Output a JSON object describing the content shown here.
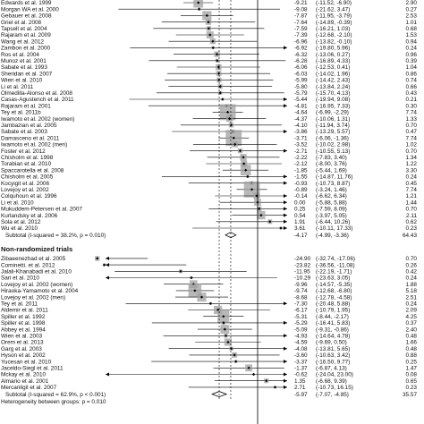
{
  "chart_data": {
    "type": "forest",
    "x_scale": "linear",
    "null_line": 0,
    "colors": {
      "box": "#a0a0a0",
      "line": "#000000",
      "diamond": "#ffffff"
    },
    "groups": [
      {
        "name": "",
        "studies": [
          {
            "label": "Edwards et al. 1999",
            "es": "-9.21",
            "ci": "(-11.52, -6.90)",
            "wt": "2.90",
            "est": -9.21,
            "lo": -11.52,
            "hi": -6.9,
            "w": 2.9
          },
          {
            "label": "Morgan WA et al. 2000",
            "es": "-9.08",
            "ci": "(-21.62, 3.47)",
            "wt": "0.27",
            "est": -9.08,
            "lo": -21.62,
            "hi": 3.47,
            "w": 0.27
          },
          {
            "label": "Gebauer et al. 2008",
            "es": "-7.87",
            "ci": "(-11.95, -3.79)",
            "wt": "2.53",
            "est": -7.87,
            "lo": -11.95,
            "hi": -3.79,
            "w": 2.53
          },
          {
            "label": "Griel et al. 2008",
            "es": "-7.64",
            "ci": "(-14.89, -0.39)",
            "wt": "1.01",
            "est": -7.64,
            "lo": -14.89,
            "hi": -0.39,
            "w": 1.01
          },
          {
            "label": "Tapsell et al. 2004",
            "es": "-7.59",
            "ci": "(-16.21, 1.03)",
            "wt": "0.68",
            "est": -7.59,
            "lo": -16.21,
            "hi": 1.03,
            "w": 0.68
          },
          {
            "label": "Rajaram et al. 2009",
            "es": "-7.39",
            "ci": "(-12.68, -2.10)",
            "wt": "1.53",
            "est": -7.39,
            "lo": -12.68,
            "hi": -2.1,
            "w": 1.53
          },
          {
            "label": "Wang et al. 2012",
            "es": "-6.96",
            "ci": "(-13.82, -0.10)",
            "wt": "0.94",
            "est": -6.96,
            "lo": -13.82,
            "hi": -0.1,
            "w": 0.94
          },
          {
            "label": "Zambon et al. 2000",
            "es": "-6.92",
            "ci": "(-19.80, 5.96)",
            "wt": "0.24",
            "est": -6.92,
            "lo": -19.8,
            "hi": 5.96,
            "w": 0.24
          },
          {
            "label": "Ros et al. 2004",
            "es": "-6.32",
            "ci": "(-13.06, 0.27)",
            "wt": "0.96",
            "est": -6.32,
            "lo": -13.06,
            "hi": 0.27,
            "w": 0.96
          },
          {
            "label": "Munoz et al. 2001",
            "es": "-6.28",
            "ci": "(-16.89, 4.33)",
            "wt": "0.39",
            "est": -6.28,
            "lo": -16.89,
            "hi": 4.33,
            "w": 0.39
          },
          {
            "label": "Sabate et al. 1993",
            "es": "-6.06",
            "ci": "(-12.53, 0.41)",
            "wt": "1.04",
            "est": -6.06,
            "lo": -12.53,
            "hi": 0.41,
            "w": 1.04
          },
          {
            "label": "Sheridan et al. 2007",
            "es": "-6.03",
            "ci": "(-14.02, 1.96)",
            "wt": "0.86",
            "est": -6.03,
            "lo": -14.02,
            "hi": 1.96,
            "w": 0.86
          },
          {
            "label": "Wien et al. 2010",
            "es": "-5.99",
            "ci": "(-14.42, 2.43)",
            "wt": "0.74",
            "est": -5.99,
            "lo": -14.42,
            "hi": 2.43,
            "w": 0.74
          },
          {
            "label": "Li et al. 2011",
            "es": "-5.80",
            "ci": "(-13.84, 2.24)",
            "wt": "0.66",
            "est": -5.8,
            "lo": -13.84,
            "hi": 2.24,
            "w": 0.66
          },
          {
            "label": "Olmedilla-Alonso et al. 2008",
            "es": "-5.79",
            "ci": "(-15.70, 4.13)",
            "wt": "0.43",
            "est": -5.79,
            "lo": -15.7,
            "hi": 4.13,
            "w": 0.43
          },
          {
            "label": "Casas-Agustench et al. 2011",
            "es": "-5.44",
            "ci": "(-19.94, 9.08)",
            "wt": "0.21",
            "est": -5.44,
            "lo": -19.94,
            "hi": 9.08,
            "w": 0.21
          },
          {
            "label": "Rajaram et al. 2001",
            "es": "-4.81",
            "ci": "(-16.95, 7.33)",
            "wt": "0.30",
            "est": -4.81,
            "lo": -16.95,
            "hi": 7.33,
            "w": 0.3
          },
          {
            "label": "Tey et al. 2011b",
            "es": "-4.64",
            "ci": "(-6.99, -2.29)",
            "wt": "7.74",
            "est": -4.64,
            "lo": -6.99,
            "hi": -2.29,
            "w": 7.74
          },
          {
            "label": "Iwamoto et al. 2002 (women)",
            "es": "-4.37",
            "ci": "(-10.06, 1.31)",
            "wt": "1.33",
            "est": -4.37,
            "lo": -10.06,
            "hi": 1.31,
            "w": 1.33
          },
          {
            "label": "Jambazian et al. 2005",
            "es": "-4.10",
            "ci": "(-11.94, 3.74)",
            "wt": "0.70",
            "est": -4.1,
            "lo": -11.94,
            "hi": 3.74,
            "w": 0.7
          },
          {
            "label": "Sabate et al. 2003",
            "es": "-3.86",
            "ci": "(-13.29, 5.57)",
            "wt": "0.47",
            "est": -3.86,
            "lo": -13.29,
            "hi": 5.57,
            "w": 0.47
          },
          {
            "label": "Damasceno et al. 2011",
            "es": "-3.71",
            "ci": "(-6.06, -1.36)",
            "wt": "7.74",
            "est": -3.71,
            "lo": -6.06,
            "hi": -1.36,
            "w": 7.74
          },
          {
            "label": "Iwamoto et al. 2002 (men)",
            "es": "-3.52",
            "ci": "(-10.02, 2.98)",
            "wt": "1.02",
            "est": -3.52,
            "lo": -10.02,
            "hi": 2.98,
            "w": 1.02
          },
          {
            "label": "Foster et al. 2012",
            "es": "-2.71",
            "ci": "(-10.55, 5.13)",
            "wt": "0.70",
            "est": -2.71,
            "lo": -10.55,
            "hi": 5.13,
            "w": 0.7
          },
          {
            "label": "Chisholm et al. 1998",
            "es": "-2.22",
            "ci": "(-7.83, 3.40)",
            "wt": "1.34",
            "est": -2.22,
            "lo": -7.83,
            "hi": 3.4,
            "w": 1.34
          },
          {
            "label": "Torabian et al. 2010",
            "es": "-2.12",
            "ci": "(-8.00, 3.76)",
            "wt": "1.22",
            "est": -2.12,
            "lo": -8.0,
            "hi": 3.76,
            "w": 1.22
          },
          {
            "label": "Spaccarotella et al. 2008",
            "es": "-1.85",
            "ci": "(-5.44, 1.69)",
            "wt": "3.30",
            "est": -1.85,
            "lo": -5.44,
            "hi": 1.69,
            "w": 3.3
          },
          {
            "label": "Chisholm et al. 2005",
            "es": "-1.55",
            "ci": "(-14.87, 11.76)",
            "wt": "0.24",
            "est": -1.55,
            "lo": -14.87,
            "hi": 11.76,
            "w": 0.24
          },
          {
            "label": "Kocyigit et al. 2006",
            "es": "-0.93",
            "ci": "(-10.73, 8.87)",
            "wt": "0.45",
            "est": -0.93,
            "lo": -10.73,
            "hi": 8.87,
            "w": 0.45
          },
          {
            "label": "Lovejoy et al. 2002",
            "es": "-0.89",
            "ci": "(-3.24, 1.46)",
            "wt": "7.74",
            "est": -0.89,
            "lo": -3.24,
            "hi": 1.46,
            "w": 7.74
          },
          {
            "label": "Colquhoun et al. 1996",
            "es": "-0.14",
            "ci": "(-6.62, 6.34)",
            "wt": "1.21",
            "est": -0.14,
            "lo": -6.62,
            "hi": 6.34,
            "w": 1.21
          },
          {
            "label": "Li et al. 2010",
            "es": "0.00",
            "ci": "(-5.88, 5.88)",
            "wt": "1.44",
            "est": 0.0,
            "lo": -5.88,
            "hi": 5.88,
            "w": 1.44
          },
          {
            "label": "Mukuddem-Petersen et al. 2007",
            "es": "0.25",
            "ci": "(-7.59, 8.09)",
            "wt": "0.70",
            "est": 0.25,
            "lo": -7.59,
            "hi": 8.09,
            "w": 0.7
          },
          {
            "label": "Kurlandsky et al. 2006",
            "es": "0.54",
            "ci": "(-3.97, 5.05)",
            "wt": "2.11",
            "est": 0.54,
            "lo": -3.97,
            "hi": 5.05,
            "w": 2.11
          },
          {
            "label": "Sola et al. 2012",
            "es": "1.91",
            "ci": "(-6.44, 10.26)",
            "wt": "0.62",
            "est": 1.91,
            "lo": -6.44,
            "hi": 10.26,
            "w": 0.62
          },
          {
            "label": "Wu et al. 2010",
            "es": "3.61",
            "ci": "(-10.11, 17.33)",
            "wt": "0.23",
            "est": 3.61,
            "lo": -10.11,
            "hi": 17.33,
            "w": 0.23
          }
        ],
        "subtotal": {
          "label": "Subtotal  (I-squared = 38.2%, p = 0.010)",
          "es": "-4.17",
          "ci": "(-4.99, -3.36)",
          "wt": "64.43",
          "est": -4.17,
          "lo": -4.99,
          "hi": -3.36
        }
      },
      {
        "name": "Non-randomized trials",
        "studies": [
          {
            "label": "Zibaeenezhad et al. 2005",
            "es": "-24.90",
            "ci": "(-32.74, -17.06)",
            "wt": "0.70",
            "est": -24.9,
            "lo": -32.74,
            "hi": -17.06,
            "w": 0.7
          },
          {
            "label": "Cominetti. et al. 2012",
            "es": "-23.82",
            "ci": "(-36.56, -11.08)",
            "wt": "0.26",
            "est": -23.82,
            "lo": -36.56,
            "hi": -11.08,
            "w": 0.26
          },
          {
            "label": "Jalali-Khanabadi et al. 2010",
            "es": "-11.95",
            "ci": "(-22.19, -1.71)",
            "wt": "0.42",
            "est": -11.95,
            "lo": -22.19,
            "hi": -1.71,
            "w": 0.42
          },
          {
            "label": "Sari et al. 2010",
            "es": "-10.29",
            "ci": "(-23.63, 3.05)",
            "wt": "0.24",
            "est": -10.29,
            "lo": -23.63,
            "hi": 3.05,
            "w": 0.24
          },
          {
            "label": "Lovejoy et al. 2002 (women)",
            "es": "-9.96",
            "ci": "(-14.57, -5.35)",
            "wt": "1.88",
            "est": -9.96,
            "lo": -14.57,
            "hi": -5.35,
            "w": 1.88
          },
          {
            "label": "Hiraoka-Yamamoto et al. 2004",
            "es": "-9.74",
            "ci": "(-12.68, -6.80)",
            "wt": "5.18",
            "est": -9.74,
            "lo": -12.68,
            "hi": -6.8,
            "w": 5.18
          },
          {
            "label": "Lovejoy et al. 2002 (men)",
            "es": "-8.68",
            "ci": "(-12.78, -4.58)",
            "wt": "2.51",
            "est": -8.68,
            "lo": -12.78,
            "hi": -4.58,
            "w": 2.51
          },
          {
            "label": "Tey et al. 2011",
            "es": "-7.30",
            "ci": "(-20.48, 5.88)",
            "wt": "0.24",
            "est": -7.3,
            "lo": -20.48,
            "hi": 5.88,
            "w": 0.24
          },
          {
            "label": "Aldemir et al. 2011",
            "es": "-6.17",
            "ci": "(-10.79, 1.95)",
            "wt": "2.09",
            "est": -6.17,
            "lo": -10.79,
            "hi": 1.95,
            "w": 2.09
          },
          {
            "label": "Spiller et al. 1992",
            "es": "-5.31",
            "ci": "(-8.44, -2.17)",
            "wt": "4.25",
            "est": -5.31,
            "lo": -8.44,
            "hi": -2.17,
            "w": 4.25
          },
          {
            "label": "Spiller et al. 1998",
            "es": "-5.29",
            "ci": "(-16.41, 5.83)",
            "wt": "0.37",
            "est": -5.29,
            "lo": -16.41,
            "hi": 5.83,
            "w": 0.37
          },
          {
            "label": "Abbey et al. 1994",
            "es": "-5.09",
            "ci": "(-9.31, -0.86)",
            "wt": "2.40",
            "est": -5.09,
            "lo": -9.31,
            "hi": -0.86,
            "w": 2.4
          },
          {
            "label": "Wien et al. 2003",
            "es": "-4.93",
            "ci": "(-14.64, 4.78)",
            "wt": "0.48",
            "est": -4.93,
            "lo": -14.64,
            "hi": 4.78,
            "w": 0.48
          },
          {
            "label": "Orem et al. 2013",
            "es": "-4.59",
            "ci": "(-9.69, 0.50)",
            "wt": "1.66",
            "est": -4.59,
            "lo": -9.69,
            "hi": 0.5,
            "w": 1.66
          },
          {
            "label": "Garg et al. 2003",
            "es": "-4.08",
            "ci": "(-13.81, 5.65)",
            "wt": "0.48",
            "est": -4.08,
            "lo": -13.81,
            "hi": 5.65,
            "w": 0.48
          },
          {
            "label": "Hyson et al. 2002",
            "es": "-3.60",
            "ci": "(-10.63, 3.42)",
            "wt": "0.88",
            "est": -3.6,
            "lo": -10.63,
            "hi": 3.42,
            "w": 0.88
          },
          {
            "label": "Yucesan et al. 2010",
            "es": "-3.37",
            "ci": "(-16.50, 9.77)",
            "wt": "0.25",
            "est": -3.37,
            "lo": -16.5,
            "hi": 9.77,
            "w": 0.25
          },
          {
            "label": "Jaceldo-Siegl et al. 2011",
            "es": "-1.37",
            "ci": "(-6.87, 4.13)",
            "wt": "1.47",
            "est": -1.37,
            "lo": -6.87,
            "hi": 4.13,
            "w": 1.47
          },
          {
            "label": "Mckay et al. 2010",
            "es": "-0.62",
            "ci": "(-24.04, 23.00)",
            "wt": "0.08",
            "est": -0.62,
            "lo": -24.04,
            "hi": 23.0,
            "w": 0.08
          },
          {
            "label": "Almario et al. 2001",
            "es": "1.35",
            "ci": "(-6.68, 9.39)",
            "wt": "0.65",
            "est": 1.35,
            "lo": -6.68,
            "hi": 9.39,
            "w": 0.65
          },
          {
            "label": "Mercanligil et al. 2007",
            "es": "2.71",
            "ci": "(-10.73, 16.15)",
            "wt": "0.23",
            "est": 2.71,
            "lo": -10.73,
            "hi": 16.15,
            "w": 0.23
          }
        ],
        "subtotal": {
          "label": "Subtotal  (I-squared = 62.9%, p < 0.001)",
          "es": "-5.97",
          "ci": "(-7.07, -4.85)",
          "wt": "35.57",
          "est": -5.97,
          "lo": -7.07,
          "hi": -4.85
        }
      }
    ],
    "overall": {
      "label": "Heterogeneity between groups: p = 0.010",
      "es": "",
      "ci": "",
      "wt": ""
    }
  }
}
